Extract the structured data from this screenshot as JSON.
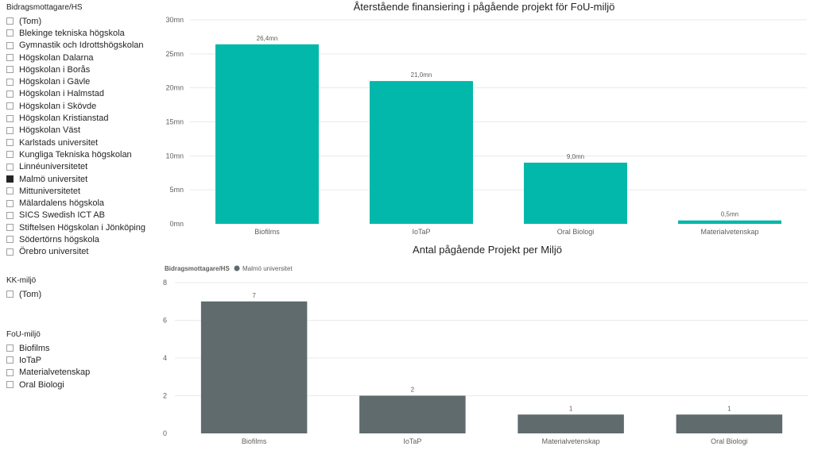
{
  "slicers": {
    "hs": {
      "title": "Bidragsmottagare/HS",
      "items": [
        {
          "label": "(Tom)",
          "checked": false
        },
        {
          "label": "Blekinge tekniska högskola",
          "checked": false
        },
        {
          "label": "Gymnastik och Idrottshögskolan",
          "checked": false
        },
        {
          "label": "Högskolan Dalarna",
          "checked": false
        },
        {
          "label": "Högskolan i Borås",
          "checked": false
        },
        {
          "label": "Högskolan i Gävle",
          "checked": false
        },
        {
          "label": "Högskolan i Halmstad",
          "checked": false
        },
        {
          "label": "Högskolan i Skövde",
          "checked": false
        },
        {
          "label": "Högskolan Kristianstad",
          "checked": false
        },
        {
          "label": "Högskolan Väst",
          "checked": false
        },
        {
          "label": "Karlstads universitet",
          "checked": false
        },
        {
          "label": "Kungliga Tekniska högskolan",
          "checked": false
        },
        {
          "label": "Linnéuniversitetet",
          "checked": false
        },
        {
          "label": "Malmö universitet",
          "checked": true
        },
        {
          "label": "Mittuniversitetet",
          "checked": false
        },
        {
          "label": "Mälardalens högskola",
          "checked": false
        },
        {
          "label": "SICS Swedish ICT AB",
          "checked": false
        },
        {
          "label": "Stiftelsen Högskolan i Jönköping",
          "checked": false
        },
        {
          "label": "Södertörns högskola",
          "checked": false
        },
        {
          "label": "Örebro universitet",
          "checked": false
        }
      ]
    },
    "kk": {
      "title": "KK-miljö",
      "items": [
        {
          "label": "(Tom)",
          "checked": false
        }
      ]
    },
    "fou": {
      "title": "FoU-miljö",
      "items": [
        {
          "label": "Biofilms",
          "checked": false
        },
        {
          "label": "IoTaP",
          "checked": false
        },
        {
          "label": "Materialvetenskap",
          "checked": false
        },
        {
          "label": "Oral Biologi",
          "checked": false
        }
      ]
    }
  },
  "chart_data": [
    {
      "type": "bar",
      "title": "Återstående finansiering i pågående projekt för FoU-miljö",
      "categories": [
        "Biofilms",
        "IoTaP",
        "Oral Biologi",
        "Materialvetenskap"
      ],
      "values": [
        26.4,
        21.0,
        9.0,
        0.5
      ],
      "data_labels": [
        "26,4mn",
        "21,0mn",
        "9,0mn",
        "0,5mn"
      ],
      "ylim": [
        0,
        30
      ],
      "yticks": [
        0,
        5,
        10,
        15,
        20,
        25,
        30
      ],
      "ytick_labels": [
        "0mn",
        "5mn",
        "10mn",
        "15mn",
        "20mn",
        "25mn",
        "30mn"
      ],
      "grid": true,
      "color": "#01B8AA"
    },
    {
      "type": "bar",
      "title": "Antal pågående Projekt per Miljö",
      "legend": {
        "title": "Bidragsmottagare/HS",
        "entries": [
          "Malmö universitet"
        ],
        "position": "top-left"
      },
      "categories": [
        "Biofilms",
        "IoTaP",
        "Materialvetenskap",
        "Oral Biologi"
      ],
      "series": [
        {
          "name": "Malmö universitet",
          "values": [
            7,
            2,
            1,
            1
          ]
        }
      ],
      "data_labels": [
        "7",
        "2",
        "1",
        "1"
      ],
      "ylim": [
        0,
        8
      ],
      "yticks": [
        0,
        2,
        4,
        6,
        8
      ],
      "ytick_labels": [
        "0",
        "2",
        "4",
        "6",
        "8"
      ],
      "grid": true,
      "color": "#5F6B6D"
    }
  ]
}
